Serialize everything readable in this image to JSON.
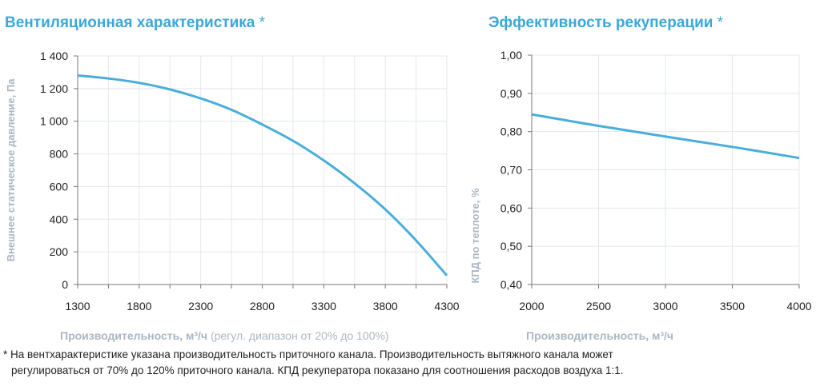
{
  "chart_data": [
    {
      "type": "line",
      "title": "Вентиляционная характеристика",
      "title_mark": "*",
      "xlabel_bold": "Производительность",
      "xlabel_unit": ", м³/ч",
      "xlabel_note": " (регул. диапазон от 20% до 100%)",
      "ylabel": "Внешнее статическое давление, Па",
      "xlim": [
        1300,
        4300
      ],
      "ylim": [
        0,
        1400
      ],
      "xticks": [
        1300,
        1800,
        2300,
        2800,
        3300,
        3800,
        4300
      ],
      "xtick_labels": [
        "1300",
        "1800",
        "2300",
        "2800",
        "3300",
        "3800",
        "4300"
      ],
      "yticks": [
        0,
        200,
        400,
        600,
        800,
        1000,
        1200,
        1400
      ],
      "ytick_labels": [
        "0",
        "200",
        "400",
        "600",
        "800",
        "1 000",
        "1 200",
        "1 400"
      ],
      "grid": true,
      "color": "#4aaedb",
      "x": [
        1300,
        1550,
        1800,
        2050,
        2300,
        2550,
        2800,
        3050,
        3300,
        3550,
        3800,
        4050,
        4300
      ],
      "y": [
        1280,
        1262,
        1235,
        1195,
        1140,
        1070,
        980,
        880,
        760,
        620,
        460,
        270,
        55
      ]
    },
    {
      "type": "line",
      "title": "Эффективность рекуперации",
      "title_mark": "*",
      "xlabel_bold": "Производительность",
      "xlabel_unit": ", м³/ч",
      "ylabel": "КПД по теплоте, %",
      "xlim": [
        2000,
        4000
      ],
      "ylim": [
        0.4,
        1.0
      ],
      "xticks": [
        2000,
        2500,
        3000,
        3500,
        4000
      ],
      "xtick_labels": [
        "2000",
        "2500",
        "3000",
        "3500",
        "4000"
      ],
      "yticks": [
        0.4,
        0.5,
        0.6,
        0.7,
        0.8,
        0.9,
        1.0
      ],
      "ytick_labels": [
        "0,40",
        "0,50",
        "0,60",
        "0,70",
        "0,80",
        "0,90",
        "1,00"
      ],
      "grid": true,
      "color": "#4aaedb",
      "x": [
        2000,
        2500,
        3000,
        3500,
        4000
      ],
      "y": [
        0.845,
        0.815,
        0.787,
        0.76,
        0.731
      ]
    }
  ],
  "footnote": {
    "line1": "* На вентхарактеристике указана производительность приточного канала. Производительность вытяжного канала может",
    "line2": "регулироваться от 70% до 120% приточного канала. КПД рекуператора показано для соотношения расходов воздуха 1:1."
  }
}
